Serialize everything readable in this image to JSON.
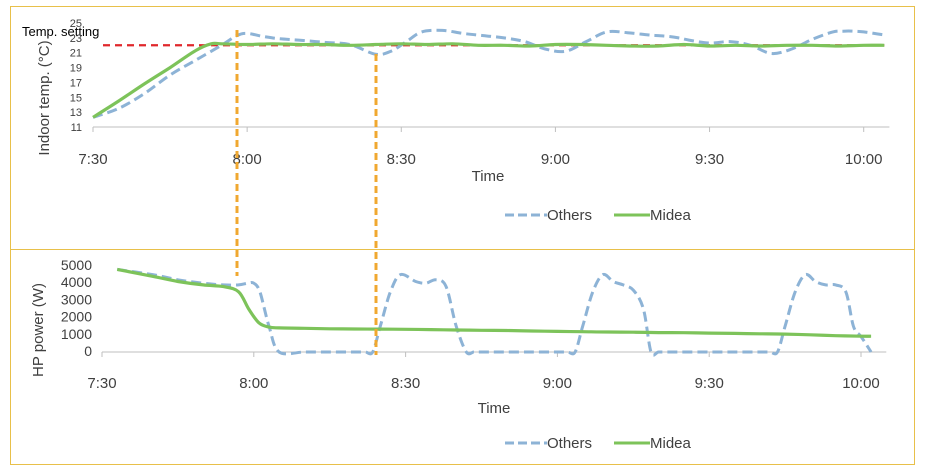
{
  "chart_data": [
    {
      "type": "line",
      "xlabel": "Time",
      "ylabel": "Indoor temp. (°C)",
      "ylim": [
        11,
        25
      ],
      "yticks": [
        "11",
        "13",
        "15",
        "17",
        "19",
        "21",
        "23",
        "25"
      ],
      "xticks": [
        "7:30",
        "8:00",
        "8:30",
        "9:00",
        "9:30",
        "10:00"
      ],
      "annotation": "Temp. setting",
      "setpoint": 22,
      "legend_position": "bottom",
      "series": [
        {
          "name": "Others",
          "color": "#8db3d6",
          "style": "dashed",
          "x": [
            0,
            5,
            10,
            15,
            20,
            25,
            28,
            30,
            33,
            36,
            40,
            45,
            50,
            55,
            58,
            61,
            64,
            68,
            72,
            76,
            80,
            84,
            88,
            92,
            96,
            100,
            104,
            108,
            110,
            112,
            114,
            116,
            120,
            124,
            128,
            132,
            136,
            140,
            144,
            146,
            148,
            150,
            152,
            154
          ],
          "y": [
            12.3,
            13.5,
            15.5,
            18,
            20,
            22,
            23.3,
            23.6,
            23.2,
            22.9,
            22.7,
            22.4,
            22.1,
            20.8,
            21.2,
            22.5,
            23.8,
            24,
            23.6,
            23.3,
            23,
            22.5,
            21.5,
            21.2,
            22.5,
            23.8,
            23.7,
            23.4,
            23.3,
            23.2,
            23,
            22.7,
            22.3,
            22.5,
            22,
            20.9,
            21.5,
            22.8,
            23.8,
            23.9,
            23.9,
            23.8,
            23.6,
            23.4
          ]
        },
        {
          "name": "Midea",
          "color": "#7dc35a",
          "style": "solid",
          "x": [
            0,
            5,
            10,
            15,
            20,
            23,
            25,
            30,
            35,
            40,
            45,
            50,
            55,
            60,
            65,
            70,
            75,
            80,
            85,
            90,
            95,
            100,
            105,
            110,
            115,
            120,
            125,
            130,
            135,
            140,
            145,
            150,
            154
          ],
          "y": [
            12.3,
            14.5,
            16.8,
            19,
            21.3,
            22.2,
            22.2,
            22.1,
            22.2,
            22.1,
            22.1,
            22,
            22.1,
            22.2,
            22.1,
            22.2,
            22,
            22,
            21.9,
            22.1,
            22.1,
            22,
            21.9,
            21.9,
            22.1,
            21.9,
            22,
            21.9,
            22,
            22,
            21.9,
            22,
            22
          ]
        }
      ]
    },
    {
      "type": "line",
      "xlabel": "Time",
      "ylabel": "HP power (W)",
      "ylim": [
        0,
        5000
      ],
      "yticks": [
        "0",
        "1000",
        "2000",
        "3000",
        "4000",
        "5000"
      ],
      "xticks": [
        "7:30",
        "8:00",
        "8:30",
        "9:00",
        "9:30",
        "10:00"
      ],
      "legend_position": "bottom",
      "series": [
        {
          "name": "Others",
          "color": "#8db3d6",
          "style": "dashed",
          "x": [
            3,
            10,
            15,
            20,
            24,
            27,
            28.8,
            30,
            31.2,
            33,
            35,
            40,
            45,
            50,
            52,
            53.5,
            55,
            57,
            59,
            62,
            64,
            66,
            68,
            70,
            72,
            73.5,
            75,
            77,
            80,
            85,
            90,
            92,
            93.5,
            95,
            97,
            99,
            101,
            103,
            105,
            107,
            108.5,
            110,
            112,
            115,
            120,
            125,
            130,
            132,
            133.5,
            135,
            137,
            139,
            141,
            143,
            145,
            147,
            148.5,
            150,
            152
          ],
          "y": [
            4800,
            4500,
            4200,
            4000,
            3900,
            3900,
            4000,
            4000,
            3500,
            1500,
            0,
            0,
            0,
            0,
            0,
            0,
            1500,
            3500,
            4500,
            4100,
            4000,
            4200,
            3800,
            1500,
            0,
            0,
            0,
            0,
            0,
            0,
            0,
            0,
            0,
            1500,
            3500,
            4500,
            4100,
            3900,
            3600,
            2500,
            0,
            0,
            0,
            0,
            0,
            0,
            0,
            0,
            0,
            1500,
            3500,
            4500,
            4100,
            3900,
            3900,
            3500,
            1500,
            900,
            0
          ]
        },
        {
          "name": "Midea",
          "color": "#7dc35a",
          "style": "solid",
          "x": [
            3,
            10,
            15,
            20,
            24,
            27,
            29,
            31,
            33,
            35,
            40,
            45,
            50,
            55,
            60,
            65,
            70,
            75,
            80,
            85,
            90,
            95,
            100,
            105,
            110,
            115,
            120,
            125,
            130,
            135,
            140,
            145,
            150,
            152
          ],
          "y": [
            4800,
            4400,
            4100,
            3900,
            3800,
            3500,
            2500,
            1700,
            1450,
            1400,
            1380,
            1350,
            1340,
            1330,
            1320,
            1300,
            1280,
            1260,
            1250,
            1220,
            1200,
            1180,
            1160,
            1150,
            1130,
            1120,
            1100,
            1080,
            1060,
            1040,
            1000,
            950,
            920,
            920
          ]
        }
      ]
    }
  ]
}
